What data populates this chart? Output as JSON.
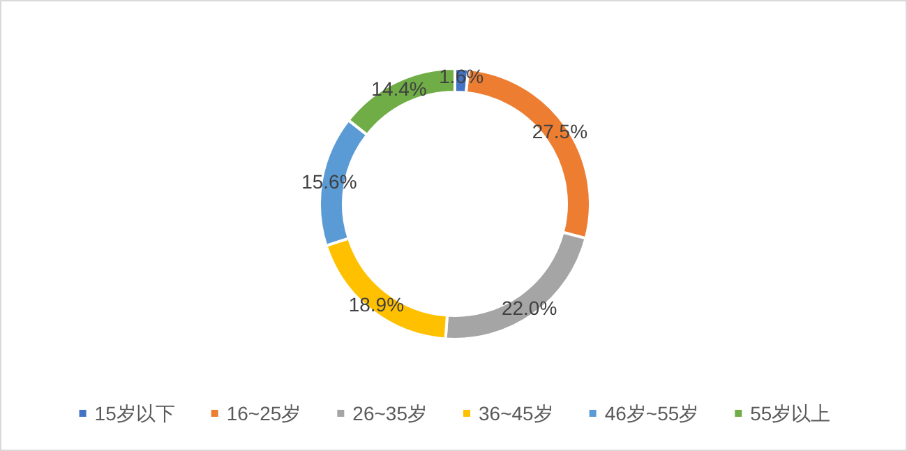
{
  "chart_data": {
    "type": "donut",
    "categories": [
      "15岁以下",
      "16~25岁",
      "26~35岁",
      "36~45岁",
      "46岁~55岁",
      "55岁以上"
    ],
    "values": [
      1.6,
      27.5,
      22.0,
      18.9,
      15.6,
      14.4
    ],
    "colors": [
      "#4472c4",
      "#ed7d31",
      "#a5a5a5",
      "#ffc000",
      "#5b9bd5",
      "#70ad47"
    ],
    "value_labels": [
      "1.6%",
      "27.5%",
      "22.0%",
      "18.9%",
      "15.6%",
      "14.4%"
    ],
    "legend": "bottom"
  }
}
